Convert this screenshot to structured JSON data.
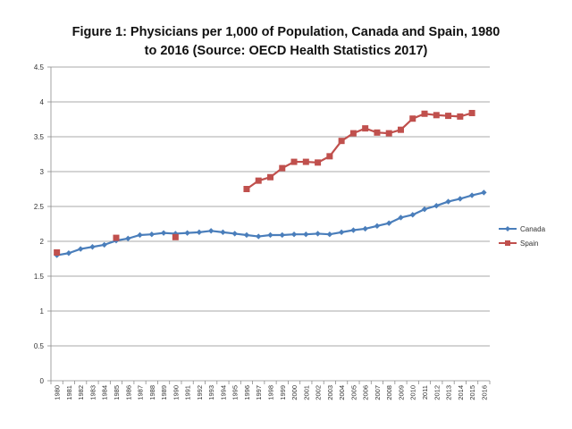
{
  "chart_data": {
    "type": "line",
    "title_line1": "Figure 1: Physicians per 1,000 of Population, Canada and Spain, 1980",
    "title_line2": "to 2016 (Source: OECD Health Statistics 2017)",
    "xlabel": "",
    "ylabel": "",
    "ylim": [
      0,
      4.5
    ],
    "yticks": [
      "0",
      "0.5",
      "1",
      "1.5",
      "2",
      "2.5",
      "3",
      "3.5",
      "4",
      "4.5"
    ],
    "grid": true,
    "legend_position": "right",
    "categories": [
      "1980",
      "1981",
      "1982",
      "1983",
      "1984",
      "1985",
      "1986",
      "1987",
      "1988",
      "1989",
      "1990",
      "1991",
      "1992",
      "1993",
      "1994",
      "1995",
      "1996",
      "1997",
      "1998",
      "1999",
      "2000",
      "2001",
      "2002",
      "2003",
      "2004",
      "2005",
      "2006",
      "2007",
      "2008",
      "2009",
      "2010",
      "2011",
      "2012",
      "2013",
      "2014",
      "2015",
      "2016"
    ],
    "series": [
      {
        "name": "Canada",
        "color": "#4a7ebb",
        "marker": "diamond",
        "values": [
          1.8,
          1.83,
          1.89,
          1.92,
          1.95,
          2.01,
          2.04,
          2.09,
          2.1,
          2.12,
          2.11,
          2.12,
          2.13,
          2.15,
          2.13,
          2.11,
          2.09,
          2.07,
          2.09,
          2.09,
          2.1,
          2.1,
          2.11,
          2.1,
          2.13,
          2.16,
          2.18,
          2.22,
          2.26,
          2.34,
          2.38,
          2.46,
          2.51,
          2.57,
          2.61,
          2.66,
          2.7
        ]
      },
      {
        "name": "Spain",
        "color": "#c0504d",
        "marker": "square",
        "values": [
          1.84,
          null,
          null,
          null,
          null,
          2.05,
          null,
          null,
          null,
          null,
          2.06,
          null,
          null,
          null,
          null,
          null,
          2.75,
          2.87,
          2.92,
          3.05,
          3.14,
          3.14,
          3.13,
          3.22,
          3.44,
          3.55,
          3.62,
          3.56,
          3.55,
          3.6,
          3.76,
          3.83,
          3.81,
          3.8,
          3.79,
          3.84,
          null
        ]
      }
    ]
  }
}
